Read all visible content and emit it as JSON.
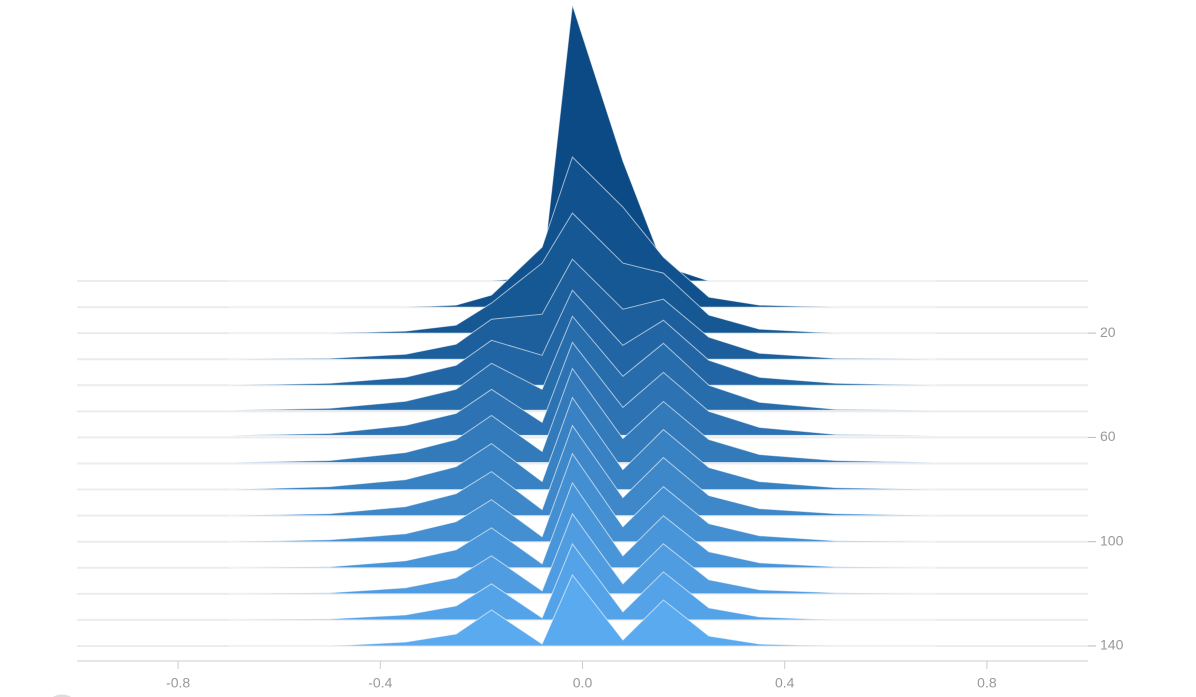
{
  "chart_data": {
    "type": "ridgeline",
    "x": [
      -0.7,
      -0.5,
      -0.35,
      -0.25,
      -0.18,
      -0.08,
      -0.02,
      0.08,
      0.16,
      0.25,
      0.35,
      0.5,
      0.7
    ],
    "series": [
      {
        "step": 0,
        "values": [
          0,
          0,
          0,
          0,
          0,
          5,
          276,
          120,
          15,
          0,
          0,
          0,
          0
        ]
      },
      {
        "step": 10,
        "values": [
          0,
          0,
          0,
          2,
          12,
          60,
          150,
          100,
          50,
          10,
          2,
          0,
          0
        ]
      },
      {
        "step": 20,
        "values": [
          0,
          0,
          2,
          8,
          30,
          70,
          120,
          70,
          60,
          18,
          4,
          0,
          0
        ]
      },
      {
        "step": 30,
        "values": [
          0,
          1,
          5,
          15,
          40,
          45,
          100,
          50,
          60,
          22,
          6,
          1,
          0
        ]
      },
      {
        "step": 40,
        "values": [
          0,
          2,
          8,
          20,
          45,
          30,
          95,
          40,
          65,
          25,
          8,
          2,
          0
        ]
      },
      {
        "step": 50,
        "values": [
          1,
          3,
          10,
          22,
          48,
          22,
          95,
          35,
          68,
          26,
          9,
          2,
          1
        ]
      },
      {
        "step": 60,
        "values": [
          2,
          4,
          12,
          24,
          48,
          15,
          95,
          30,
          65,
          26,
          10,
          3,
          2
        ]
      },
      {
        "step": 70,
        "values": [
          1,
          3,
          11,
          24,
          48,
          12,
          95,
          25,
          62,
          24,
          9,
          3,
          1
        ]
      },
      {
        "step": 80,
        "values": [
          0,
          3,
          10,
          23,
          46,
          8,
          92,
          20,
          60,
          22,
          8,
          2,
          0
        ]
      },
      {
        "step": 90,
        "values": [
          0,
          2,
          9,
          22,
          44,
          6,
          90,
          18,
          58,
          20,
          7,
          2,
          0
        ]
      },
      {
        "step": 100,
        "values": [
          0,
          2,
          8,
          20,
          42,
          5,
          88,
          15,
          55,
          18,
          6,
          1,
          0
        ]
      },
      {
        "step": 110,
        "values": [
          0,
          1,
          7,
          18,
          40,
          4,
          85,
          12,
          52,
          16,
          5,
          1,
          0
        ]
      },
      {
        "step": 120,
        "values": [
          0,
          1,
          6,
          16,
          38,
          3,
          80,
          10,
          50,
          14,
          4,
          1,
          0
        ]
      },
      {
        "step": 130,
        "values": [
          0,
          1,
          5,
          14,
          36,
          2,
          76,
          8,
          48,
          12,
          3,
          0,
          0
        ]
      },
      {
        "step": 140,
        "values": [
          0,
          0,
          4,
          12,
          36,
          2,
          71,
          6,
          46,
          10,
          2,
          0,
          0
        ]
      }
    ],
    "xlim": [
      -1,
      1
    ],
    "xticks": [
      -0.8,
      -0.4,
      {
        "value": 0,
        "label": "0.0"
      },
      0.4,
      0.8
    ],
    "ylim": [
      0,
      145
    ],
    "yticks": [
      20,
      60,
      100,
      140
    ],
    "color_top": "#0b4a85",
    "color_bottom": "#5aaaf0"
  }
}
